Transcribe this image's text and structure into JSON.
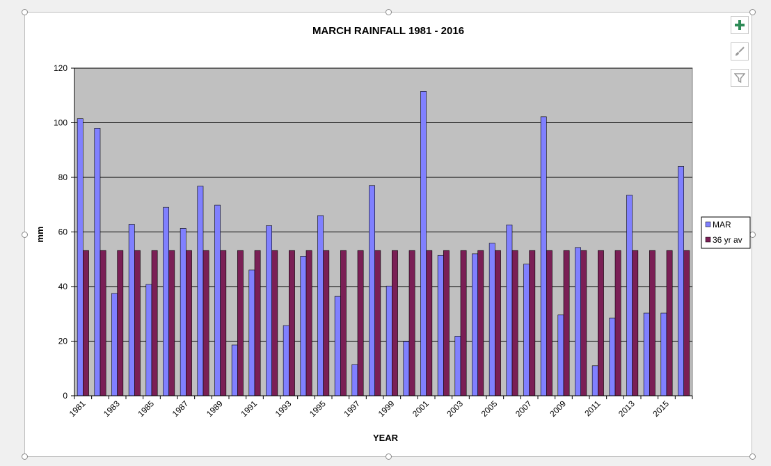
{
  "chart_data": {
    "type": "bar",
    "title": "MARCH RAINFALL 1981 - 2016",
    "xlabel": "YEAR",
    "ylabel": "mm",
    "ylim": [
      0,
      120
    ],
    "yticks": [
      0,
      20,
      40,
      60,
      80,
      100,
      120
    ],
    "grid": true,
    "legend_position": "right",
    "categories": [
      "1981",
      "1982",
      "1983",
      "1984",
      "1985",
      "1986",
      "1987",
      "1988",
      "1989",
      "1990",
      "1991",
      "1992",
      "1993",
      "1994",
      "1995",
      "1996",
      "1997",
      "1998",
      "1999",
      "2000",
      "2001",
      "2002",
      "2003",
      "2004",
      "2005",
      "2006",
      "2007",
      "2008",
      "2009",
      "2010",
      "2011",
      "2012",
      "2013",
      "2014",
      "2015",
      "2016"
    ],
    "xtick_labels": [
      "1981",
      "",
      "1983",
      "",
      "1985",
      "",
      "1987",
      "",
      "1989",
      "",
      "1991",
      "",
      "1993",
      "",
      "1995",
      "",
      "1997",
      "",
      "1999",
      "",
      "2001",
      "",
      "2003",
      "",
      "2005",
      "",
      "2007",
      "",
      "2009",
      "",
      "2011",
      "",
      "2013",
      "",
      "2015",
      ""
    ],
    "series": [
      {
        "name": "MAR",
        "color": "#8080ff",
        "values": [
          101.5,
          98,
          37.5,
          62.8,
          40.8,
          69,
          61.3,
          76.8,
          69.8,
          18.6,
          46.1,
          62.3,
          25.7,
          51.1,
          66,
          36.4,
          11.4,
          77,
          40.2,
          19.9,
          111.5,
          51.4,
          21.8,
          52,
          55.9,
          62.6,
          48.2,
          102.2,
          29.6,
          54.3,
          11,
          28.5,
          73.5,
          30.3,
          30.3,
          84
        ]
      },
      {
        "name": "36 yr av",
        "color": "#7a1f55",
        "values": [
          53.2,
          53.2,
          53.2,
          53.2,
          53.2,
          53.2,
          53.2,
          53.2,
          53.2,
          53.2,
          53.2,
          53.2,
          53.2,
          53.2,
          53.2,
          53.2,
          53.2,
          53.2,
          53.2,
          53.2,
          53.2,
          53.2,
          53.2,
          53.2,
          53.2,
          53.2,
          53.2,
          53.2,
          53.2,
          53.2,
          53.2,
          53.2,
          53.2,
          53.2,
          53.2,
          53.2
        ]
      }
    ],
    "plot_background": "#c0c0c0"
  },
  "controls": {
    "add_icon": "plus-icon",
    "style_icon": "brush-icon",
    "filter_icon": "filter-icon"
  }
}
